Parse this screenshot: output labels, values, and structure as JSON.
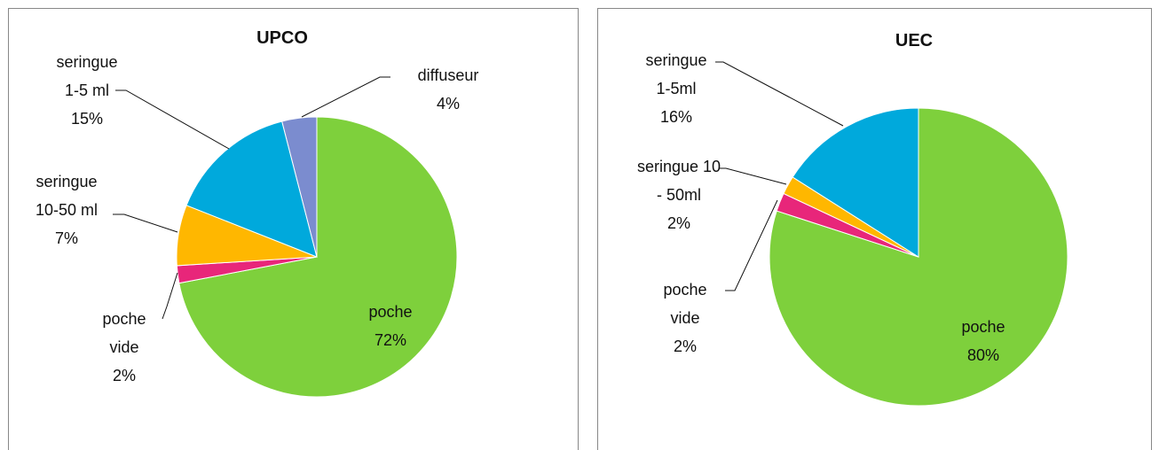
{
  "chart_data": [
    {
      "type": "pie",
      "title": "UPCO",
      "categories": [
        "poche",
        "poche vide",
        "seringue 10-50 ml",
        "seringue 1-5 ml",
        "diffuseur"
      ],
      "values": [
        72,
        2,
        7,
        15,
        4
      ],
      "value_labels": [
        "72%",
        "2%",
        "7%",
        "15%",
        "4%"
      ],
      "colors": [
        "#7ed03c",
        "#e8267a",
        "#ffb700",
        "#00a9dc",
        "#7b8ccf"
      ]
    },
    {
      "type": "pie",
      "title": "UEC",
      "categories": [
        "poche",
        "poche vide",
        "seringue 10 - 50ml",
        "seringue 1-5ml"
      ],
      "values": [
        80,
        2,
        2,
        16
      ],
      "value_labels": [
        "80%",
        "2%",
        "2%",
        "16%"
      ],
      "colors": [
        "#7ed03c",
        "#e8267a",
        "#ffb700",
        "#00a9dc"
      ]
    }
  ]
}
